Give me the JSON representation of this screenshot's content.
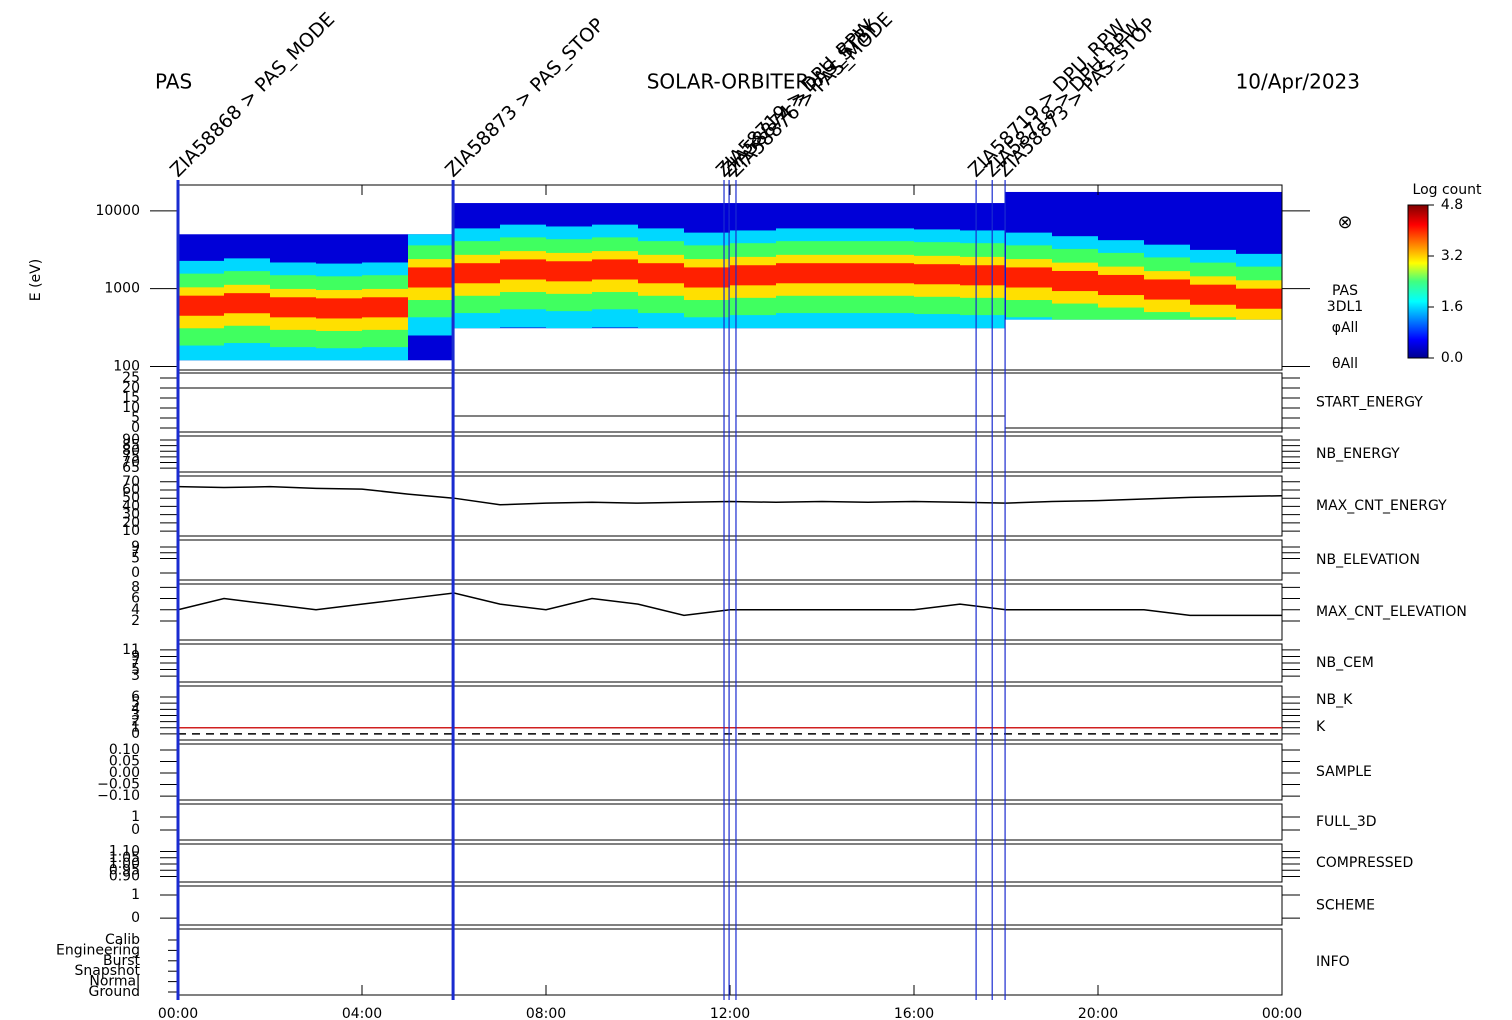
{
  "header": {
    "instrument": "PAS",
    "mission": "SOLAR-ORBITER",
    "date": "10/Apr/2023"
  },
  "chart_data": {
    "type": "multipanel",
    "xlim": [
      0,
      24
    ],
    "xticks": [
      {
        "value": 0,
        "label": "00:00"
      },
      {
        "value": 4,
        "label": "04:00"
      },
      {
        "value": 8,
        "label": "08:00"
      },
      {
        "value": 12,
        "label": "12:00"
      },
      {
        "value": 16,
        "label": "16:00"
      },
      {
        "value": 20,
        "label": "20:00"
      },
      {
        "value": 24,
        "label": "00:00"
      }
    ],
    "events": [
      {
        "time": 0.0,
        "label": "ZIA58868 > PAS_MODE"
      },
      {
        "time": 5.98,
        "label": "ZIA58873 > PAS_STOP"
      },
      {
        "time": 11.87,
        "label": "ZIA58719 > DPU_RPW"
      },
      {
        "time": 11.98,
        "label": "ZIA58874 > PAS_STBY"
      },
      {
        "time": 12.13,
        "label": "ZIA58876 > PAS_MODE"
      },
      {
        "time": 17.35,
        "label": "ZIA58719 > DPU_RPW"
      },
      {
        "time": 17.7,
        "label": "ZIA58718 > DPU_RPW"
      },
      {
        "time": 17.98,
        "label": "ZIA58873 > PAS_STOP"
      }
    ],
    "spectrogram": {
      "ylabel": "E (eV)",
      "log": true,
      "ylim": [
        90,
        21500
      ],
      "yticks": [
        100,
        1000,
        10000
      ],
      "side_labels": [
        "PAS",
        "3DL1",
        "φAll",
        "θAll"
      ],
      "symbol": "⊗",
      "segments": {
        "start": [
          0,
          5.98,
          17.98
        ],
        "end": [
          5.98,
          17.98,
          24
        ],
        "emin": [
          120,
          310,
          400
        ],
        "emax": [
          5000,
          12600,
          17500
        ]
      },
      "peak": {
        "x": [
          0.5,
          1.5,
          2.5,
          3.5,
          4.5,
          5.5,
          6.5,
          7.5,
          8.5,
          9.5,
          10.5,
          11.5,
          12.5,
          13.5,
          14.5,
          15.5,
          16.5,
          17.5,
          18.5,
          19.5,
          20.5,
          21.5,
          22.5,
          23.5
        ],
        "values": [
          650,
          700,
          620,
          600,
          620,
          1500,
          1700,
          1900,
          1800,
          1900,
          1700,
          1500,
          1600,
          1700,
          1700,
          1700,
          1650,
          1600,
          1500,
          1350,
          1200,
          1050,
          900,
          800
        ]
      },
      "colorbar": {
        "title": "Log count",
        "zlim": [
          0,
          4.8
        ],
        "ticks": [
          {
            "value": 0,
            "label": "0.0"
          },
          1.6,
          3.2,
          4.8
        ]
      }
    },
    "panels": [
      {
        "label": "START_ENERGY",
        "color": "#000000",
        "ylim": [
          -2,
          27.5
        ],
        "yticks": [
          0,
          5,
          10,
          15,
          20,
          25
        ],
        "steps": {
          "start": [
            0,
            5.98,
            12.13,
            17.98
          ],
          "end": [
            5.98,
            11.98,
            17.98,
            24
          ],
          "values": [
            20,
            6,
            6,
            0
          ]
        }
      },
      {
        "label": "NB_ENERGY",
        "color": "#2020c0",
        "ylim": [
          61.5,
          93.5
        ],
        "yticks": [
          65,
          70,
          75,
          80,
          85,
          90
        ]
      },
      {
        "label": "MAX_CNT_ENERGY",
        "color": "#000000",
        "ylim": [
          4,
          77
        ],
        "yticks": [
          10,
          20,
          30,
          40,
          50,
          60,
          70
        ],
        "line": {
          "x": [
            0,
            1,
            2,
            3,
            4,
            5,
            6,
            7,
            8,
            9,
            10,
            11,
            12,
            13,
            14,
            15,
            16,
            17,
            18,
            19,
            20,
            21,
            22,
            23,
            24
          ],
          "values": [
            64,
            63,
            64,
            62,
            61,
            55,
            50,
            42,
            44,
            45,
            44,
            45,
            46,
            45,
            46,
            45,
            46,
            45,
            44,
            46,
            47,
            49,
            51,
            52,
            53
          ]
        }
      },
      {
        "label": "NB_ELEVATION",
        "color": "#2020c0",
        "ylim": [
          -2.4,
          11.4
        ],
        "yticks": [
          0,
          5,
          7,
          9
        ]
      },
      {
        "label": "MAX_CNT_ELEVATION",
        "color": "#000000",
        "ylim": [
          -1.4,
          8.6
        ],
        "yticks": [
          2,
          4,
          6,
          8
        ],
        "line": {
          "x": [
            0,
            1,
            2,
            3,
            4,
            5,
            6,
            7,
            8,
            9,
            10,
            11,
            12,
            13,
            14,
            15,
            16,
            17,
            18,
            19,
            20,
            21,
            22,
            23,
            24
          ],
          "values": [
            4,
            6,
            5,
            4,
            5,
            6,
            7,
            5,
            4,
            6,
            5,
            3,
            4,
            4,
            4,
            4,
            4,
            5,
            4,
            4,
            4,
            4,
            3,
            3,
            3
          ]
        }
      },
      {
        "label": "NB_CEM",
        "color": "#2020c0",
        "ylim": [
          1.2,
          12.8
        ],
        "yticks": [
          3,
          5,
          7,
          9,
          11
        ]
      },
      {
        "ylim": [
          -1,
          7.8
        ],
        "yticks": [
          0,
          1,
          2,
          3,
          4,
          5,
          6
        ],
        "series": [
          {
            "name": "NB_K",
            "color": "#d02020",
            "x": [
              0,
              24
            ],
            "values": [
              1,
              1
            ]
          },
          {
            "name": "K",
            "color": "#2020c0",
            "dash": true,
            "x": [
              0,
              24
            ],
            "values": [
              0,
              0
            ]
          }
        ]
      },
      {
        "label": "SAMPLE",
        "color": "#2020c0",
        "ylim": [
          -0.117,
          0.126
        ],
        "yticks": [
          {
            "value": -0.1,
            "label": "−0.10"
          },
          {
            "value": -0.05,
            "label": "−0.05"
          },
          {
            "value": 0,
            "label": "0.00"
          },
          {
            "value": 0.05,
            "label": "0.05"
          },
          {
            "value": 0.1,
            "label": "0.10"
          }
        ]
      },
      {
        "label": "FULL_3D",
        "color": "#2020c0",
        "ylim": [
          -0.77,
          2
        ],
        "yticks": [
          0,
          1
        ]
      },
      {
        "label": "COMPRESSED",
        "color": "#000000",
        "ylim": [
          0.856,
          1.16
        ],
        "yticks": [
          {
            "value": 0.9,
            "label": "0.90"
          },
          {
            "value": 0.95,
            "label": "0.95"
          },
          {
            "value": 1,
            "label": "1.00"
          },
          {
            "value": 1.05,
            "label": "1.05"
          },
          {
            "value": 1.1,
            "label": "1.10"
          }
        ]
      },
      {
        "label": "SCHEME",
        "color": "#000000",
        "ylim": [
          -0.3,
          1.39
        ],
        "yticks": [
          0,
          1
        ]
      },
      {
        "label": "INFO",
        "color": "#000000",
        "categories": [
          "Calib",
          "Engineering",
          "Burst",
          "Snapshot",
          "Normal",
          "Ground"
        ]
      }
    ]
  }
}
